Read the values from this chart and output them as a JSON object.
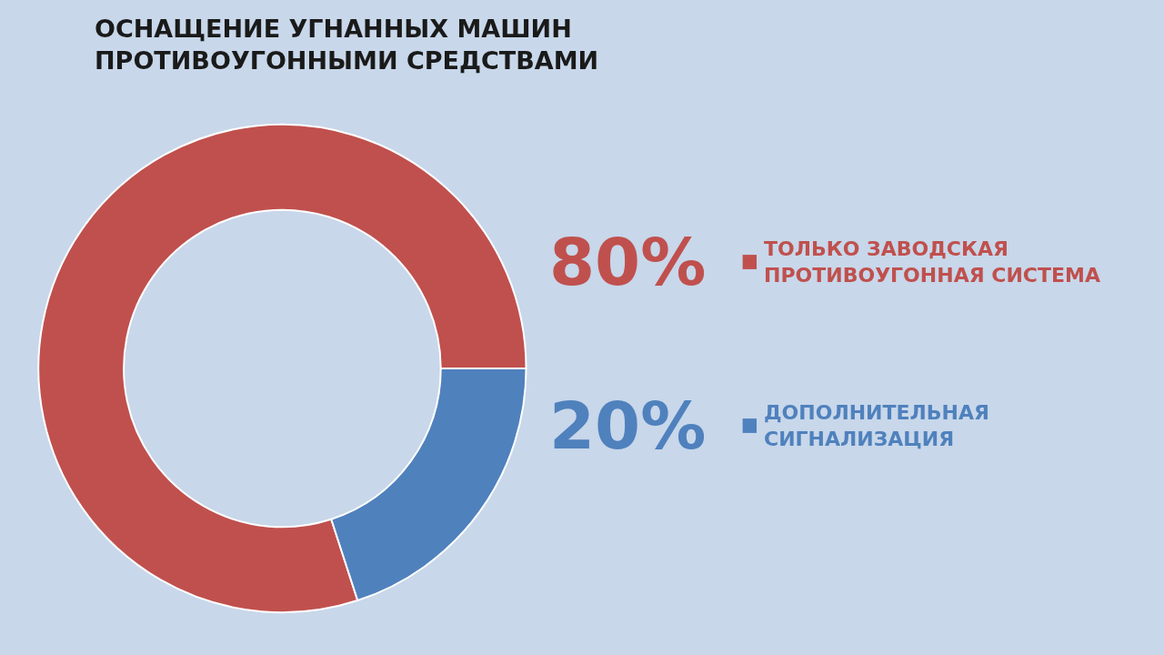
{
  "chart_data": {
    "type": "donut",
    "title": "ОСНАЩЕНИЕ УГНАННЫХ МАШИН\nПРОТИВОУГОННЫМИ СРЕДСТВАМИ",
    "categories": [
      "ТОЛЬКО ЗАВОДСКАЯ\nПРОТИВОУГОННАЯ СИСТЕМА",
      "ДОПОЛНИТЕЛЬНАЯ\nСИГНАЛИЗАЦИЯ"
    ],
    "values": [
      80,
      20
    ],
    "colors": [
      "#c0504d",
      "#4f81bd"
    ],
    "value_labels": [
      "80%",
      "20%"
    ],
    "legend": "right"
  }
}
